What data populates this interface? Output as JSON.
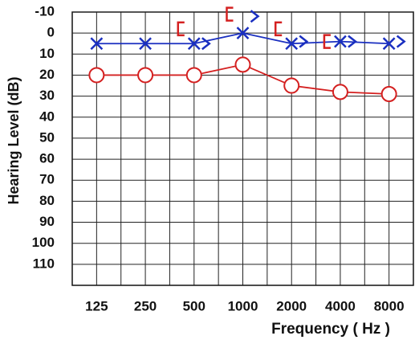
{
  "chart_data": {
    "type": "audiogram",
    "xlabel": "Frequency ( Hz )",
    "ylabel": "Hearing Level (dB)",
    "categories": [
      "125",
      "250",
      "500",
      "1000",
      "2000",
      "4000",
      "8000"
    ],
    "ylim": [
      120,
      -10
    ],
    "yticks": [
      -10,
      0,
      10,
      20,
      30,
      40,
      50,
      60,
      70,
      80,
      90,
      100,
      110
    ],
    "grid": true,
    "series": [
      {
        "color": "#d42020",
        "marker": "o",
        "line": true,
        "values": [
          20,
          20,
          20,
          15,
          25,
          28,
          29
        ]
      },
      {
        "color": "#1a2fc0",
        "marker": "x",
        "line": true,
        "values": [
          5,
          5,
          5,
          0,
          5,
          4,
          5
        ]
      },
      {
        "color": "#d42020",
        "marker": "[",
        "line": false,
        "values": [
          null,
          null,
          -2,
          -9,
          -2,
          4,
          null
        ]
      },
      {
        "color": "#1a2fc0",
        "marker": ">",
        "line": false,
        "values": [
          null,
          null,
          5,
          -8,
          4,
          4,
          4
        ]
      }
    ]
  }
}
